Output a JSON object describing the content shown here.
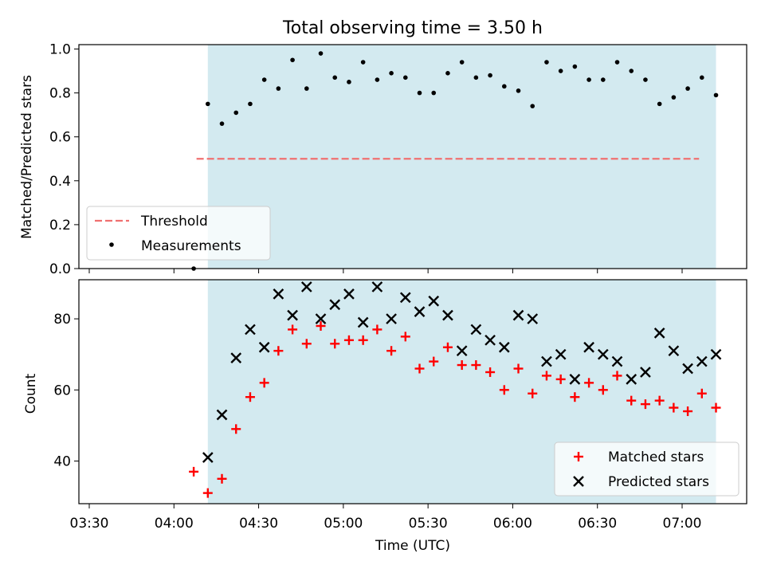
{
  "figure_title": "Total observing time = 3.50 h",
  "colors": {
    "shade": "#d3eaf0",
    "threshold": "#f07070",
    "matched": "#ff0000",
    "predicted": "#000000",
    "measurements": "#000000"
  },
  "chart_data": [
    {
      "type": "scatter",
      "ylabel": "Matched/Predicted stars",
      "ylim": [
        0.0,
        1.02
      ],
      "yticks": [
        "0.0",
        "0.2",
        "0.4",
        "0.6",
        "0.8",
        "1.0"
      ],
      "shaded_span_minutes": [
        42,
        222
      ],
      "threshold": {
        "name": "Threshold",
        "value": 0.5,
        "x_start_minutes": 38,
        "x_end_minutes": 216
      },
      "series": [
        {
          "name": "Measurements",
          "x_minutes": [
            37,
            42,
            47,
            52,
            57,
            62,
            67,
            72,
            77,
            82,
            87,
            92,
            97,
            102,
            107,
            112,
            117,
            122,
            127,
            132,
            137,
            142,
            147,
            152,
            157,
            162,
            167,
            172,
            177,
            182,
            187,
            192,
            197,
            202,
            207,
            212,
            217,
            222
          ],
          "values": [
            0.0,
            0.75,
            0.66,
            0.71,
            0.75,
            0.86,
            0.82,
            0.95,
            0.82,
            0.98,
            0.87,
            0.85,
            0.94,
            0.86,
            0.89,
            0.87,
            0.8,
            0.8,
            0.89,
            0.94,
            0.87,
            0.88,
            0.83,
            0.81,
            0.74,
            0.94,
            0.9,
            0.92,
            0.86,
            0.86,
            0.94,
            0.9,
            0.86,
            0.75,
            0.78,
            0.82,
            0.87,
            0.79
          ]
        }
      ],
      "legend": [
        "Threshold",
        "Measurements"
      ],
      "legend_position": "lower-left"
    },
    {
      "type": "scatter",
      "ylabel": "Count",
      "xlabel": "Time (UTC)",
      "ylim": [
        28,
        91
      ],
      "yticks": [
        "40",
        "60",
        "80"
      ],
      "xticks": [
        "03:30",
        "04:00",
        "04:30",
        "05:00",
        "05:30",
        "06:00",
        "06:30",
        "07:00"
      ],
      "shaded_span_minutes": [
        42,
        222
      ],
      "series": [
        {
          "name": "Matched stars",
          "x_minutes": [
            37,
            42,
            47,
            52,
            57,
            62,
            67,
            72,
            77,
            82,
            87,
            92,
            97,
            102,
            107,
            112,
            117,
            122,
            127,
            132,
            137,
            142,
            147,
            152,
            157,
            162,
            167,
            172,
            177,
            182,
            187,
            192,
            197,
            202,
            207,
            212,
            217,
            222
          ],
          "values": [
            37,
            31,
            35,
            49,
            58,
            62,
            71,
            77,
            73,
            78,
            73,
            74,
            74,
            77,
            71,
            75,
            66,
            68,
            72,
            67,
            67,
            65,
            60,
            66,
            59,
            64,
            63,
            58,
            62,
            60,
            64,
            57,
            56,
            57,
            55,
            54,
            59,
            55
          ]
        },
        {
          "name": "Predicted stars",
          "x_minutes": [
            42,
            47,
            52,
            57,
            62,
            67,
            72,
            77,
            82,
            87,
            92,
            97,
            102,
            107,
            112,
            117,
            122,
            127,
            132,
            137,
            142,
            147,
            152,
            157,
            162,
            167,
            172,
            177,
            182,
            187,
            192,
            197,
            202,
            207,
            212,
            217,
            222
          ],
          "values": [
            41,
            53,
            69,
            77,
            72,
            87,
            81,
            89,
            80,
            84,
            87,
            79,
            89,
            80,
            86,
            82,
            85,
            81,
            71,
            77,
            74,
            72,
            81,
            80,
            68,
            70,
            63,
            72,
            70,
            68,
            63,
            65,
            76,
            71,
            66,
            68,
            70
          ]
        }
      ],
      "legend": [
        "Matched stars",
        "Predicted stars"
      ],
      "legend_position": "lower-right"
    }
  ]
}
